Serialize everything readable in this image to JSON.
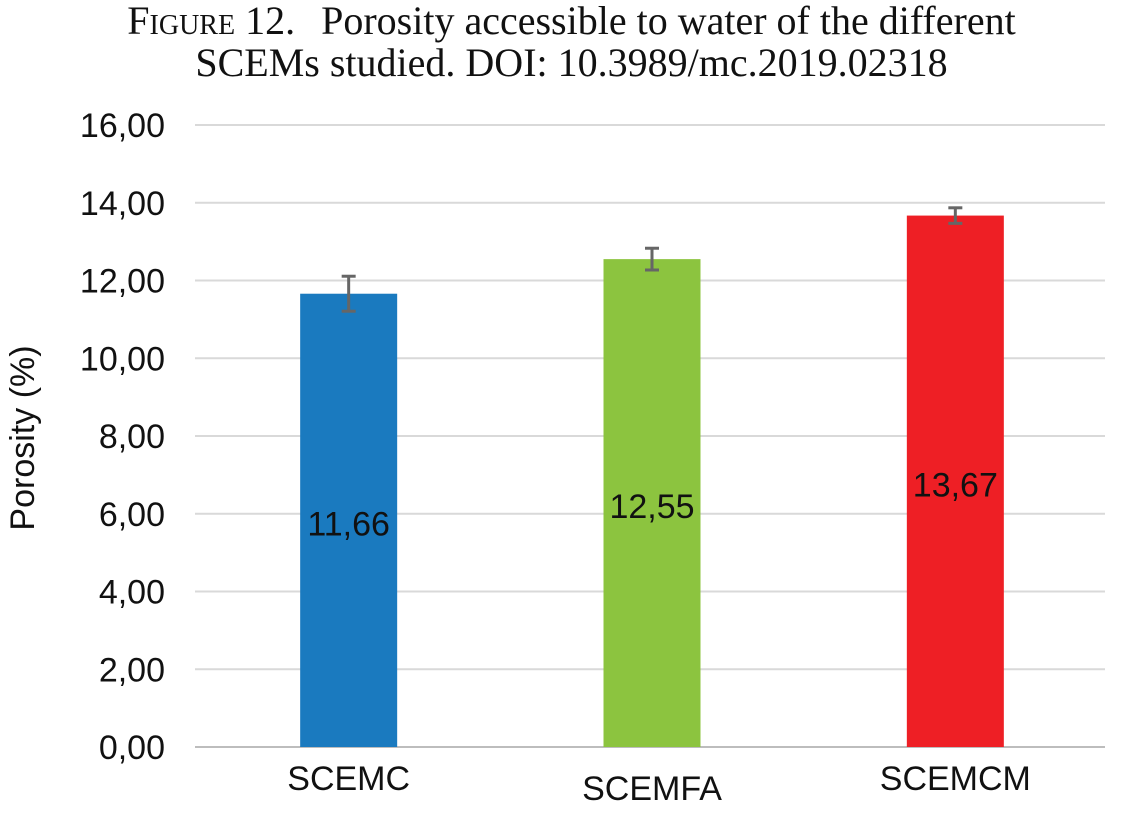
{
  "caption": {
    "label": "Figure 12.",
    "line1": "Porosity accessible to water of the different",
    "line2": "SCEMs studied. DOI: 10.3989/mc.2019.02318"
  },
  "chart_data": {
    "type": "bar",
    "title": "",
    "xlabel": "",
    "ylabel": "Porosity (%)",
    "categories": [
      "SCEMC",
      "SCEMFA",
      "SCEMCM"
    ],
    "values": [
      11.66,
      12.55,
      13.67
    ],
    "value_labels": [
      "11,66",
      "12,55",
      "13,67"
    ],
    "error": [
      0.45,
      0.28,
      0.2
    ],
    "colors": [
      "#1a7abf",
      "#8cc43f",
      "#ee1f25"
    ],
    "ylim": [
      0,
      16
    ],
    "yticks": [
      0,
      2,
      4,
      6,
      8,
      10,
      12,
      14,
      16
    ],
    "ytick_labels": [
      "0,00",
      "2,00",
      "4,00",
      "6,00",
      "8,00",
      "10,00",
      "12,00",
      "14,00",
      "16,00"
    ],
    "grid": true,
    "legend": "none"
  }
}
